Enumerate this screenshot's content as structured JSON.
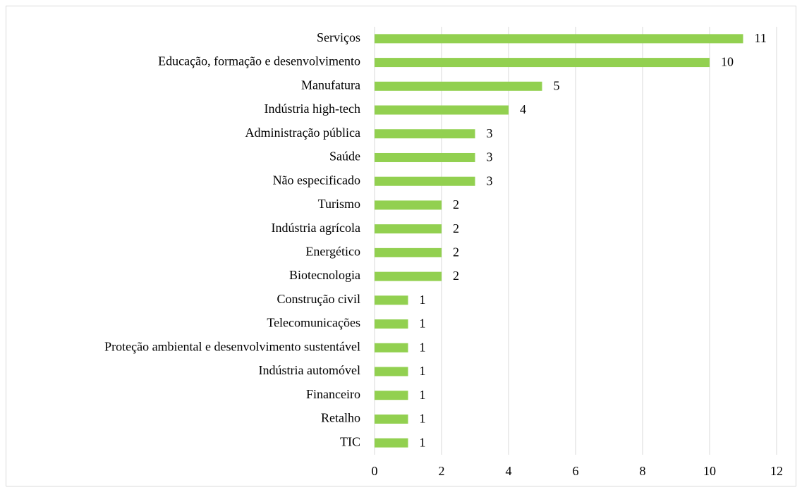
{
  "chart_data": {
    "type": "barh",
    "categories": [
      "Serviços",
      "Educação, formação e desenvolvimento",
      "Manufatura",
      "Indústria high-tech",
      "Administração pública",
      "Saúde",
      "Não especificado",
      "Turismo",
      "Indústria agrícola",
      "Energético",
      "Biotecnologia",
      "Construção civil",
      "Telecomunicações",
      "Proteção ambiental e desenvolvimento sustentável",
      "Indústria automóvel",
      "Financeiro",
      "Retalho",
      "TIC"
    ],
    "values": [
      11,
      10,
      5,
      4,
      3,
      3,
      3,
      2,
      2,
      2,
      2,
      1,
      1,
      1,
      1,
      1,
      1,
      1
    ],
    "color": "#92d050",
    "xlim": [
      0,
      12
    ],
    "xticks": [
      0,
      2,
      4,
      6,
      8,
      10,
      12
    ],
    "grid": true
  }
}
